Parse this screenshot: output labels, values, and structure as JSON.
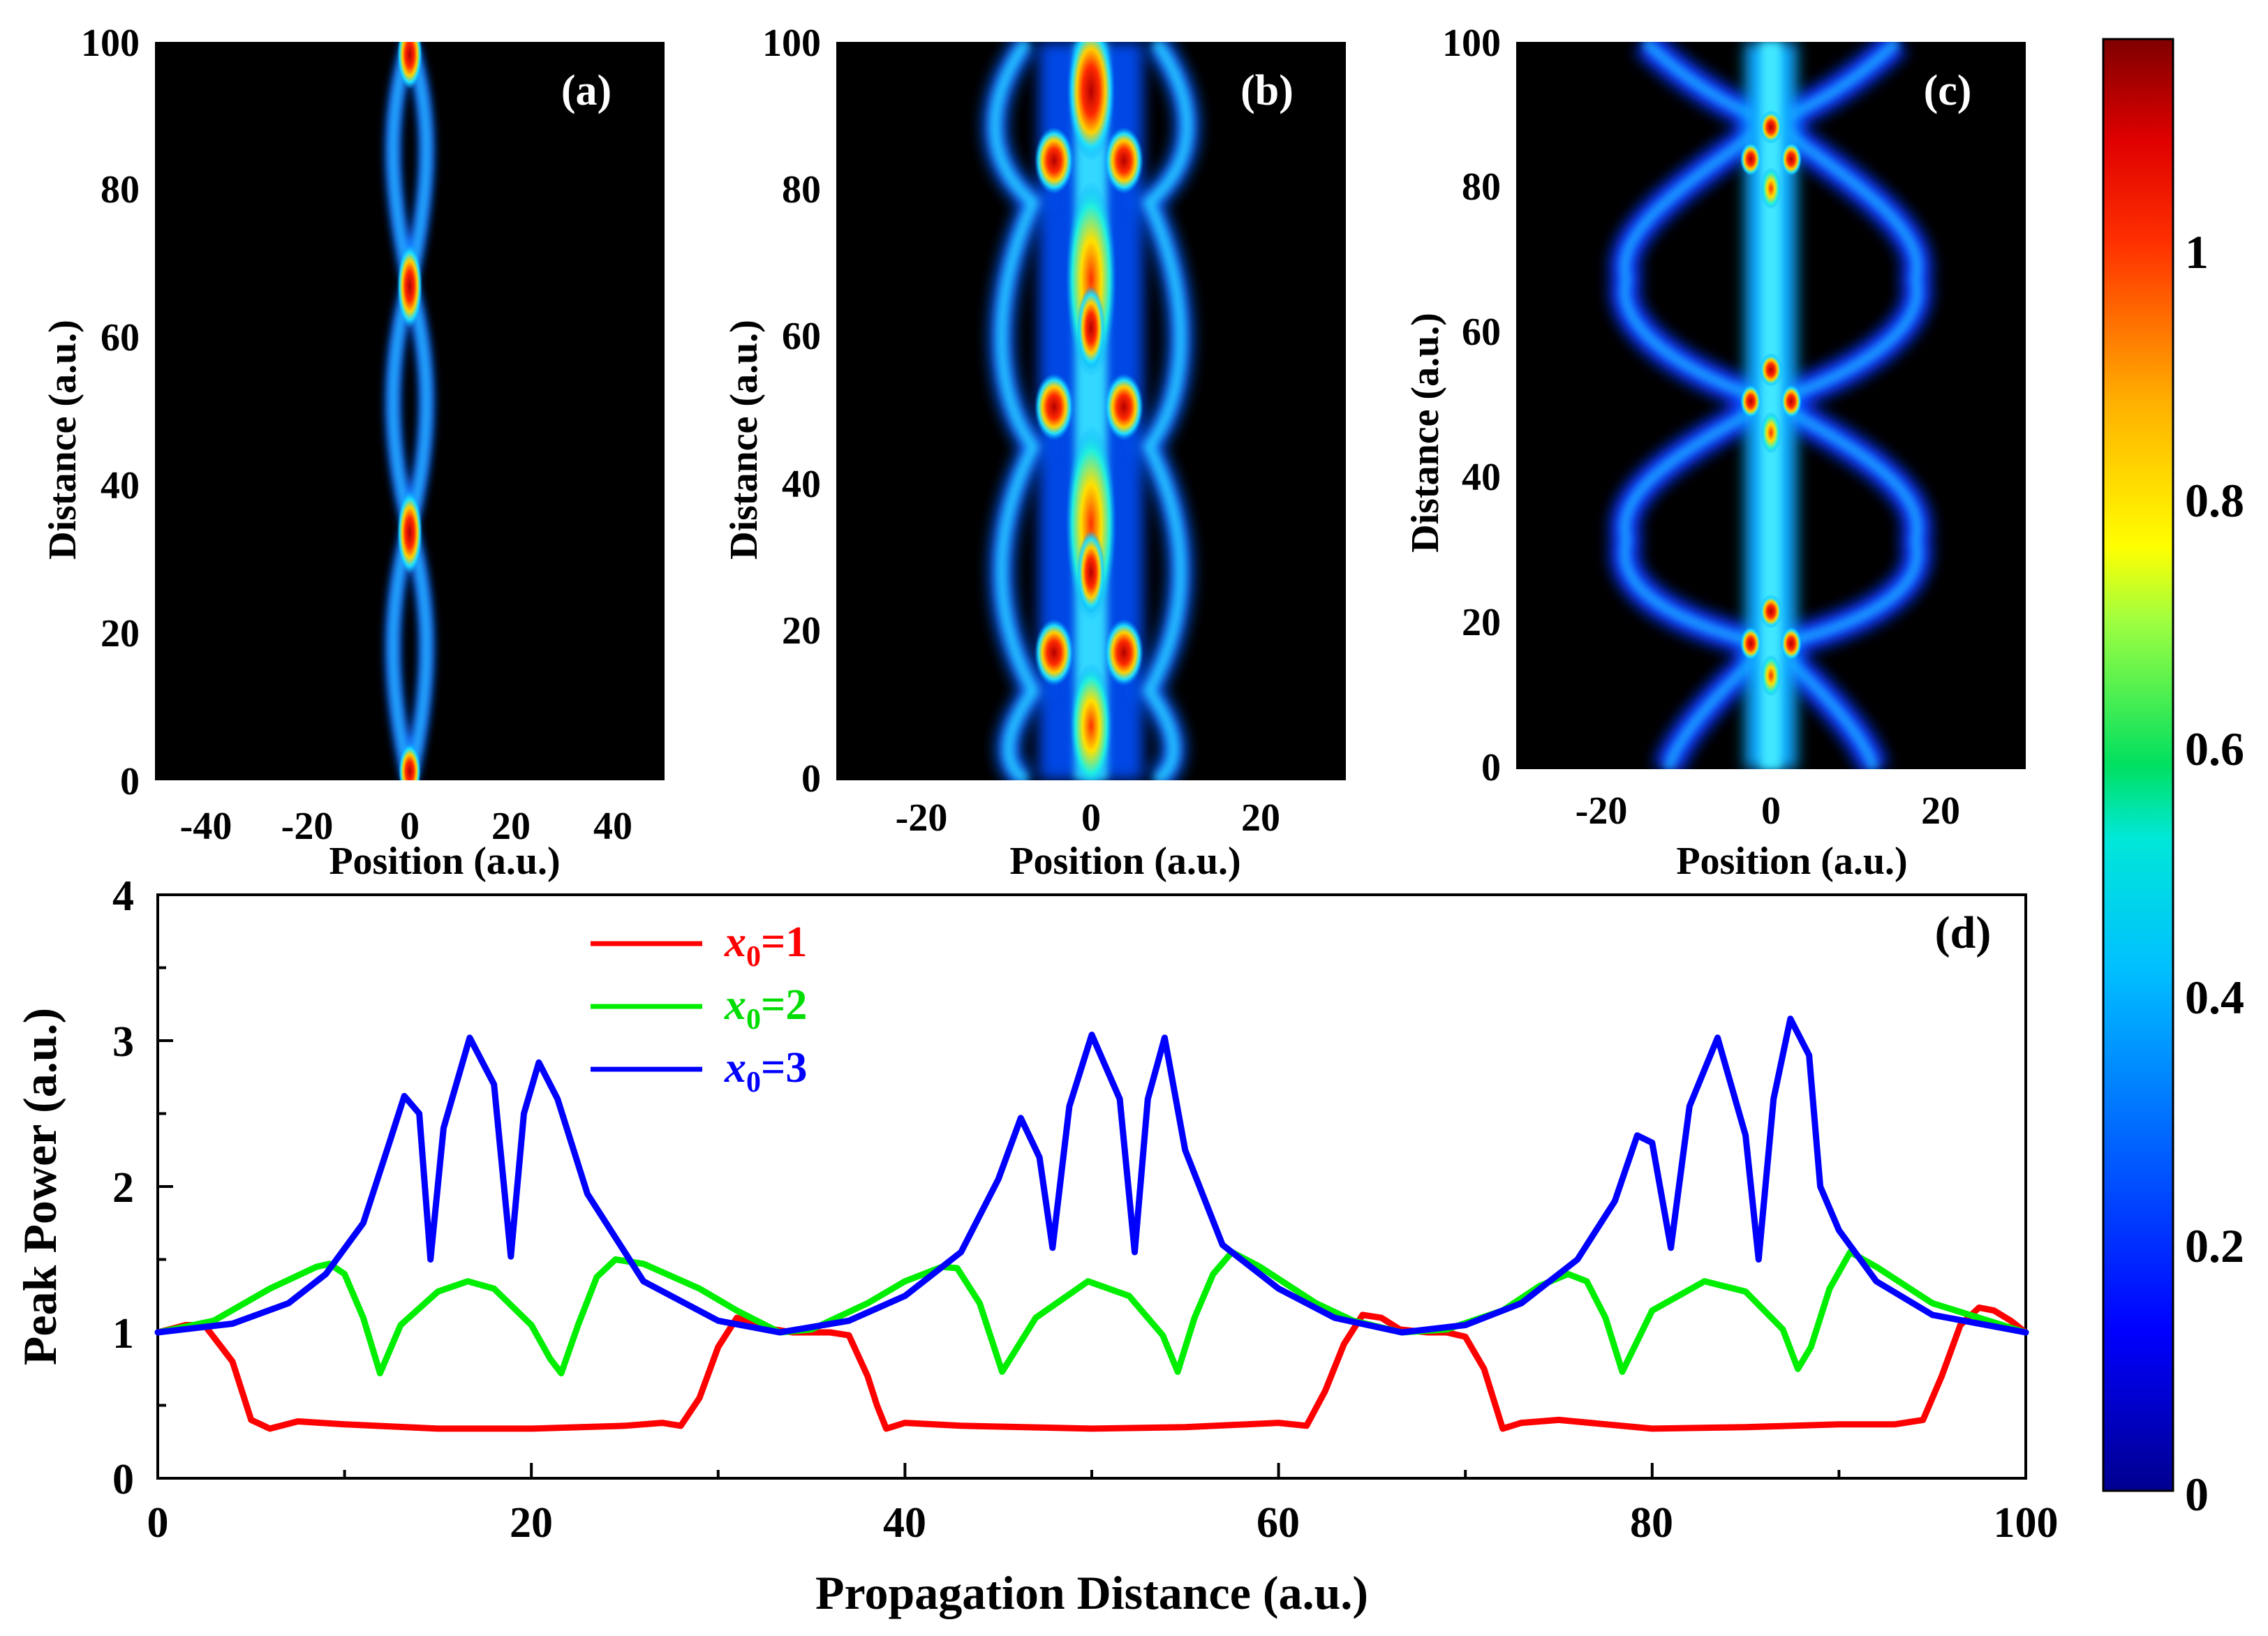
{
  "figure": {
    "panels": [
      {
        "label": "(a)",
        "ylabel": "Distance",
        "ylabel_units": "(a.u.)",
        "xlabel": "Position (a.u.)",
        "xticks": [
          "-40",
          "-20",
          "0",
          "20",
          "40"
        ],
        "yticks": [
          "0",
          "20",
          "40",
          "60",
          "80",
          "100"
        ]
      },
      {
        "label": "(b)",
        "ylabel": "Distance",
        "ylabel_units": "(a.u.)",
        "xlabel": "Position (a.u.)",
        "xticks": [
          "-20",
          "0",
          "20"
        ],
        "yticks": [
          "0",
          "20",
          "40",
          "60",
          "80",
          "100"
        ]
      },
      {
        "label": "(c)",
        "ylabel": "Distance",
        "ylabel_units": "(a.u.)",
        "xlabel": "Position (a.u.)",
        "xticks": [
          "-20",
          "0",
          "20"
        ],
        "yticks": [
          "0",
          "20",
          "40",
          "60",
          "80",
          "100"
        ]
      }
    ],
    "colorbar": {
      "ticks": [
        "0",
        "0.2",
        "0.4",
        "0.6",
        "0.8",
        "1"
      ]
    },
    "panel_d": {
      "label": "(d)"
    }
  },
  "chart_data": [
    {
      "type": "heatmap",
      "panel": "(a)",
      "title": "(a)",
      "xlabel": "Position (a.u.)",
      "ylabel": "Distance (a.u.)",
      "xlim": [
        -50,
        50
      ],
      "ylim": [
        0,
        100
      ],
      "beam_center": 0,
      "colormap": "jet",
      "description_values": {
        "period": 33.3,
        "max_intensity_at": [
          1,
          34,
          67,
          100
        ]
      }
    },
    {
      "type": "heatmap",
      "panel": "(b)",
      "title": "(b)",
      "xlabel": "Position (a.u.)",
      "ylabel": "Distance (a.u.)",
      "xlim": [
        -30,
        30
      ],
      "ylim": [
        0,
        100
      ],
      "beam_center": 0,
      "colormap": "jet",
      "description_values": {
        "side_lobe_positions": [
          -4,
          4
        ],
        "side_lobe_distances": [
          17,
          50,
          83
        ]
      }
    },
    {
      "type": "heatmap",
      "panel": "(c)",
      "title": "(c)",
      "xlabel": "Position (a.u.)",
      "ylabel": "Distance (a.u.)",
      "xlim": [
        -30,
        30
      ],
      "ylim": [
        0,
        100
      ],
      "beam_center": 0,
      "colormap": "jet",
      "description_values": {
        "focus_distances": [
          17,
          50,
          83
        ],
        "outer_swing": 13
      }
    },
    {
      "type": "line",
      "panel": "(d)",
      "title": "(d)",
      "xlabel": "Propagation Distance (a.u.)",
      "ylabel": "Peak Power (a.u.)",
      "xlim": [
        0,
        100
      ],
      "ylim": [
        0,
        4
      ],
      "xticks": [
        "0",
        "20",
        "40",
        "60",
        "80",
        "100"
      ],
      "yticks": [
        "0",
        "1",
        "2",
        "3",
        "4"
      ],
      "legend_position": "top-left",
      "series": [
        {
          "name": "x0=1",
          "legend_var": "x",
          "legend_sub": "0",
          "legend_val": "=1",
          "color": "#ff0000",
          "x": [
            0,
            1.5,
            2.5,
            4,
            5,
            6,
            7.5,
            10,
            15,
            20,
            25,
            27,
            28,
            29,
            30,
            31,
            32,
            33,
            34,
            35,
            36,
            37,
            38,
            38.5,
            39,
            40,
            43,
            50,
            55,
            60,
            61.5,
            62.5,
            63.5,
            64.5,
            65.5,
            66.5,
            68,
            69,
            70,
            71,
            72,
            73,
            75,
            80,
            85,
            90,
            93,
            94.5,
            95.5,
            96.5,
            97.5,
            98.3,
            99.2,
            100
          ],
          "y": [
            1.0,
            1.05,
            1.05,
            0.8,
            0.4,
            0.34,
            0.39,
            0.37,
            0.34,
            0.34,
            0.36,
            0.38,
            0.36,
            0.55,
            0.9,
            1.1,
            1.07,
            1.02,
            1.0,
            1.0,
            1.0,
            0.98,
            0.7,
            0.5,
            0.34,
            0.38,
            0.36,
            0.34,
            0.35,
            0.38,
            0.36,
            0.6,
            0.92,
            1.12,
            1.1,
            1.02,
            1.0,
            1.0,
            0.97,
            0.75,
            0.34,
            0.38,
            0.4,
            0.34,
            0.35,
            0.37,
            0.37,
            0.4,
            0.7,
            1.05,
            1.17,
            1.15,
            1.08,
            1.0
          ]
        },
        {
          "name": "x0=2",
          "legend_var": "x",
          "legend_sub": "0",
          "legend_val": "=2",
          "color": "#00ee00",
          "x": [
            0,
            3,
            6,
            8.5,
            9.2,
            10,
            11,
            11.9,
            13,
            15,
            16.6,
            18,
            20,
            21,
            21.6,
            22.5,
            23.5,
            24.5,
            26,
            29,
            31,
            33.3,
            35,
            38,
            40,
            42,
            42.8,
            44,
            45.2,
            47,
            49.8,
            52,
            53.8,
            54.6,
            55.5,
            56.5,
            57.5,
            59,
            62,
            64,
            66.6,
            69,
            72,
            74,
            75.5,
            76.5,
            77.5,
            78.4,
            80,
            82.8,
            85,
            87,
            87.8,
            88.5,
            89.5,
            90.6,
            92,
            95,
            100
          ],
          "y": [
            1.0,
            1.08,
            1.3,
            1.45,
            1.47,
            1.4,
            1.1,
            0.72,
            1.05,
            1.28,
            1.35,
            1.3,
            1.05,
            0.82,
            0.72,
            1.05,
            1.38,
            1.5,
            1.47,
            1.3,
            1.15,
            1.0,
            1.02,
            1.2,
            1.35,
            1.45,
            1.44,
            1.2,
            0.73,
            1.1,
            1.35,
            1.25,
            0.98,
            0.73,
            1.1,
            1.4,
            1.55,
            1.45,
            1.2,
            1.08,
            1.0,
            1.02,
            1.15,
            1.32,
            1.4,
            1.35,
            1.1,
            0.73,
            1.15,
            1.35,
            1.28,
            1.02,
            0.75,
            0.9,
            1.3,
            1.55,
            1.45,
            1.2,
            1.0
          ]
        },
        {
          "name": "x0=3",
          "legend_var": "x",
          "legend_sub": "0",
          "legend_val": "=3",
          "color": "#0000ff",
          "x": [
            0,
            4,
            7,
            9,
            11,
            12.4,
            13.2,
            14,
            14.6,
            15.3,
            16.7,
            18,
            18.9,
            19.6,
            20.4,
            21.4,
            23,
            26,
            30,
            33.3,
            37,
            40,
            43,
            45,
            46.2,
            47.2,
            47.9,
            48.8,
            50,
            51.5,
            52.3,
            53,
            53.9,
            55,
            57,
            60,
            63,
            66.6,
            70,
            73,
            76,
            78,
            79.2,
            80,
            81,
            82,
            83.5,
            85,
            85.7,
            86.5,
            87.4,
            88.4,
            89,
            90,
            92,
            95,
            100
          ],
          "y": [
            1.0,
            1.06,
            1.2,
            1.4,
            1.75,
            2.3,
            2.62,
            2.5,
            1.5,
            2.4,
            3.02,
            2.7,
            1.52,
            2.5,
            2.85,
            2.6,
            1.95,
            1.35,
            1.08,
            1.0,
            1.08,
            1.25,
            1.55,
            2.05,
            2.47,
            2.2,
            1.58,
            2.55,
            3.04,
            2.6,
            1.55,
            2.6,
            3.02,
            2.25,
            1.6,
            1.3,
            1.1,
            1.0,
            1.05,
            1.2,
            1.5,
            1.9,
            2.35,
            2.3,
            1.58,
            2.55,
            3.02,
            2.35,
            1.5,
            2.6,
            3.15,
            2.9,
            2.0,
            1.7,
            1.35,
            1.12,
            1.0
          ]
        }
      ]
    }
  ]
}
